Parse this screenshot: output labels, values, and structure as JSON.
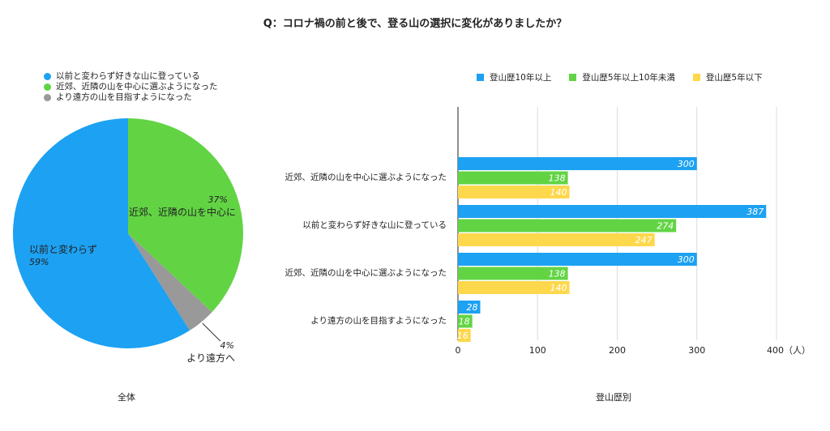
{
  "title": "Q：コロナ禍の前と後で、登る山の選択に変化がありましたか？",
  "chart_data": [
    {
      "type": "pie",
      "caption": "全体",
      "legend": [
        {
          "label": "以前と変わらず好きな山に登っている",
          "color": "#1da1f2"
        },
        {
          "label": "近郊、近隣の山を中心に選ぶようになった",
          "color": "#62d444"
        },
        {
          "label": "より遠方の山を目指すようになった",
          "color": "#999999"
        }
      ],
      "slices": [
        {
          "name": "近郊、近隣の山を中心に",
          "value": 37,
          "pct_label": "37%",
          "color": "#62d444"
        },
        {
          "name": "より遠方へ",
          "value": 4,
          "pct_label": "4%",
          "color": "#999999"
        },
        {
          "name": "以前と変わらず",
          "value": 59,
          "pct_label": "59%",
          "color": "#1da1f2"
        }
      ]
    },
    {
      "type": "bar",
      "orientation": "horizontal",
      "caption": "登山歴別",
      "categories": [
        "近郊、近隣の山を中心に選ぶようになった",
        "以前と変わらず好きな山に登っている",
        "近郊、近隣の山を中心に選ぶようになった",
        "より遠方の山を目指すようになった"
      ],
      "series": [
        {
          "name": "登山歴10年以上",
          "color": "#1da1f2",
          "values": [
            300,
            387,
            300,
            28
          ]
        },
        {
          "name": "登山歴5年以上10年未満",
          "color": "#62d444",
          "values": [
            138,
            274,
            138,
            18
          ]
        },
        {
          "name": "登山歴5年以下",
          "color": "#fed84c",
          "values": [
            140,
            247,
            140,
            16
          ]
        }
      ],
      "xlim": [
        0,
        400
      ],
      "xticks": [
        0,
        100,
        200,
        300,
        400
      ],
      "x_unit": "（人）",
      "grid": true
    }
  ]
}
